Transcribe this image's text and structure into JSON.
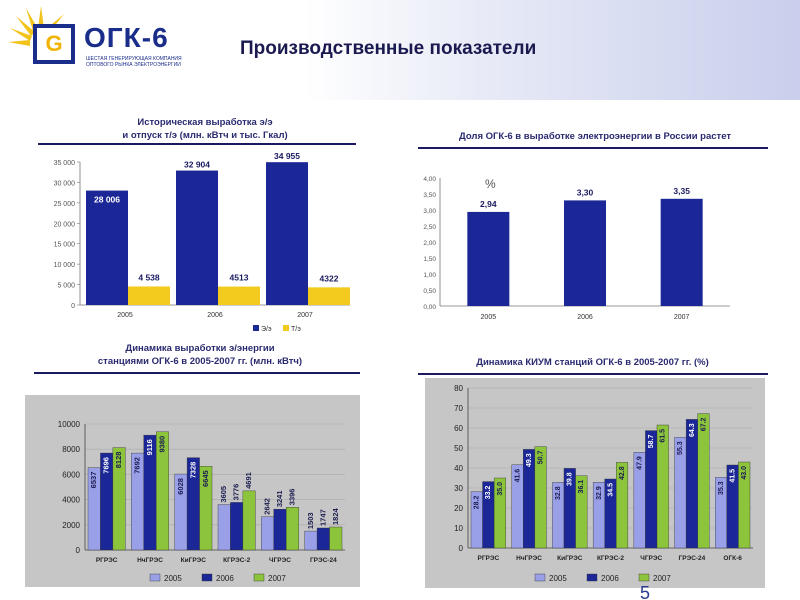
{
  "header": {
    "logo_text": "ОГК-6",
    "logo_subtitle": "Шестая генерирующая компания оптового рынка электроэнергии",
    "title": "Производственные показатели"
  },
  "colors": {
    "navy": "#1b2796",
    "yellow": "#f2cb1e",
    "lavender": "#9aa0e8",
    "green": "#8cc43c",
    "panel_bg": "#c6c6c6"
  },
  "page_number": "5",
  "chart_data": [
    {
      "id": "historical",
      "type": "bar",
      "title": "Историческая выработка э/э\nи отпуск т/э (млн. кВтч и тыс. Гкал)",
      "categories": [
        "2005",
        "2006",
        "2007"
      ],
      "series": [
        {
          "name": "Э/э",
          "values": [
            28006,
            32904,
            34955
          ],
          "labels": [
            "28 006",
            "32 904",
            "34 955"
          ]
        },
        {
          "name": "Т/э",
          "values": [
            4538,
            4513,
            4322
          ],
          "labels": [
            "4 538",
            "4513",
            "4322"
          ]
        }
      ],
      "ylim": [
        0,
        35000
      ],
      "yticks": [
        "0",
        "5 000",
        "10 000",
        "15 000",
        "20 000",
        "25 000",
        "30 000",
        "35 000"
      ],
      "legend": "bottom-right",
      "grid": false
    },
    {
      "id": "share",
      "type": "bar",
      "title": "Доля ОГК-6 в выработке электроэнергии в России растет",
      "unit": "%",
      "categories": [
        "2005",
        "2006",
        "2007"
      ],
      "series": [
        {
          "name": "",
          "values": [
            2.94,
            3.3,
            3.35
          ],
          "labels": [
            "2,94",
            "3,30",
            "3,35"
          ]
        }
      ],
      "ylim": [
        0,
        4
      ],
      "yticks": [
        "0,00",
        "0,50",
        "1,00",
        "1,50",
        "2,00",
        "2,50",
        "3,00",
        "3,50",
        "4,00"
      ],
      "grid": false
    },
    {
      "id": "stations-output",
      "type": "bar",
      "title": "Динамика выработки э/энергии\nстанциями ОГК-6 в 2005-2007 гг. (млн. кВтч)",
      "categories": [
        "РГРЭС",
        "НчГРЭС",
        "КиГРЭС",
        "КГРЭС-2",
        "ЧГРЭС",
        "ГРЭС-24"
      ],
      "series": [
        {
          "name": "2005",
          "values": [
            6537,
            7692,
            6028,
            3605,
            2642,
            1503
          ]
        },
        {
          "name": "2006",
          "values": [
            7696,
            9116,
            7328,
            3776,
            3241,
            1747
          ]
        },
        {
          "name": "2007",
          "values": [
            8128,
            9380,
            6645,
            4691,
            3396,
            1824
          ]
        }
      ],
      "ylim": [
        0,
        10000
      ],
      "yticks": [
        "0",
        "2000",
        "4000",
        "6000",
        "8000",
        "10000"
      ],
      "legend": "bottom",
      "grid": true
    },
    {
      "id": "kium",
      "type": "bar",
      "title": "Динамика КИУМ станций ОГК-6 в 2005-2007 гг. (%)",
      "categories": [
        "РГРЭС",
        "НчГРЭС",
        "КиГРЭС",
        "КГРЭС-2",
        "ЧГРЭС",
        "ГРЭС-24",
        "ОГК-6"
      ],
      "series": [
        {
          "name": "2005",
          "values": [
            28.2,
            41.6,
            32.8,
            32.9,
            47.9,
            55.3,
            35.3
          ]
        },
        {
          "name": "2006",
          "values": [
            33.2,
            49.3,
            39.8,
            34.5,
            58.7,
            64.3,
            41.5
          ]
        },
        {
          "name": "2007",
          "values": [
            35.0,
            50.7,
            36.1,
            42.8,
            61.5,
            67.2,
            43.0
          ]
        }
      ],
      "ylim": [
        0,
        80
      ],
      "yticks": [
        "0",
        "10",
        "20",
        "30",
        "40",
        "50",
        "60",
        "70",
        "80"
      ],
      "legend": "bottom",
      "grid": true
    }
  ]
}
